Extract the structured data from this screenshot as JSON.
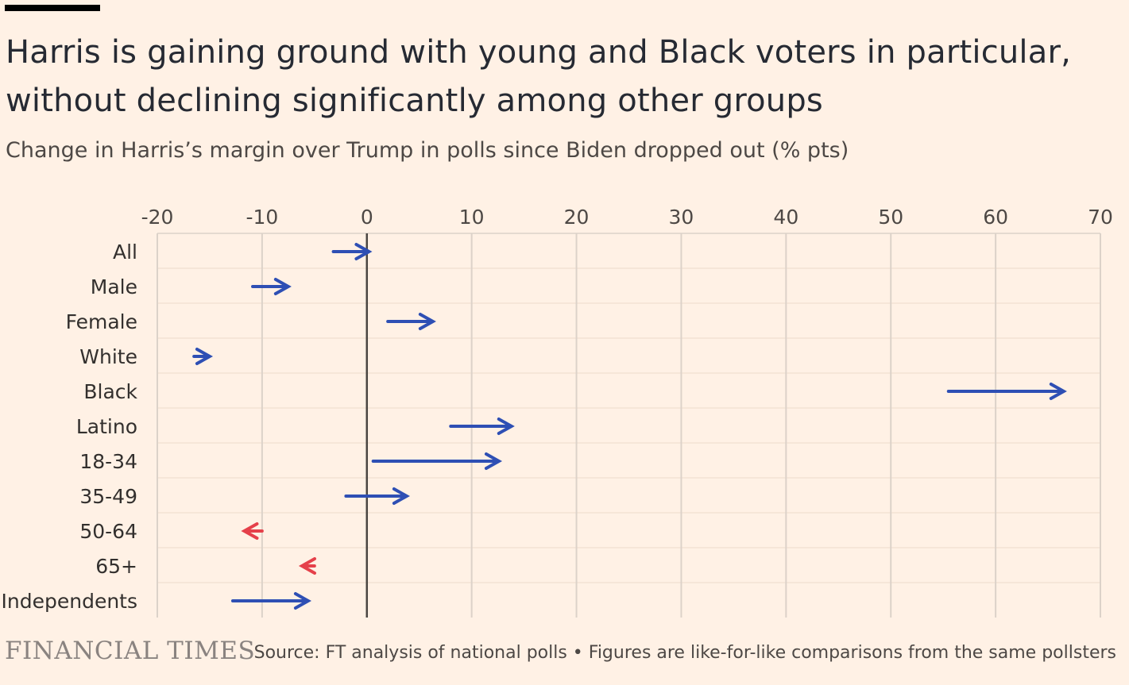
{
  "header": {
    "title": "Harris is gaining ground with young and Black voters in particular, without declining significantly among other groups",
    "subtitle": "Change in Harris’s margin over Trump in polls since Biden dropped out (% pts)"
  },
  "footer": {
    "brand": "FINANCIAL TIMES",
    "source": "Source: FT analysis of national polls • Figures are like-for-like comparisons from the same pollsters"
  },
  "colors": {
    "gain": "#2e4fb4",
    "loss": "#e5404a",
    "grid": "#dcd2c9",
    "zero": "#4a4642",
    "background": "#fff1e5"
  },
  "chart_data": {
    "type": "arrow",
    "xlim": [
      -20,
      70
    ],
    "xticks": [
      -20,
      -10,
      0,
      10,
      20,
      30,
      40,
      50,
      60,
      70
    ],
    "xtick_labels": [
      "-20",
      "-10",
      "0",
      "10",
      "20",
      "30",
      "40",
      "50",
      "60",
      "70"
    ],
    "grid": true,
    "categories": [
      "All",
      "Male",
      "Female",
      "White",
      "Black",
      "Latino",
      "18-34",
      "35-49",
      "50-64",
      "65+",
      "Independents"
    ],
    "series": [
      {
        "values_from": [
          -3.2,
          -10.9,
          2.0,
          -16.5,
          55.5,
          8.0,
          0.6,
          -2.0,
          -10.0,
          -5.0,
          -12.8
        ],
        "values_to": [
          0.2,
          -7.5,
          6.3,
          -15.0,
          66.5,
          13.8,
          12.6,
          3.8,
          -11.7,
          -6.2,
          -5.6
        ]
      }
    ]
  }
}
